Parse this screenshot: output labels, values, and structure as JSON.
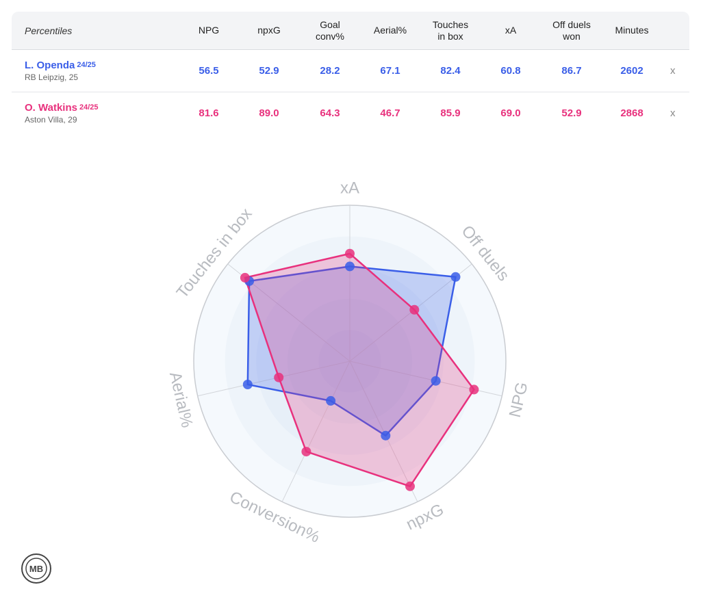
{
  "table": {
    "title": "Percentiles",
    "columns": [
      {
        "key": "npg",
        "label": "NPG"
      },
      {
        "key": "npxg",
        "label": "npxG"
      },
      {
        "key": "conv",
        "label": "Goal\nconv%"
      },
      {
        "key": "aerial",
        "label": "Aerial%"
      },
      {
        "key": "touches",
        "label": "Touches\nin box"
      },
      {
        "key": "xa",
        "label": "xA"
      },
      {
        "key": "offduels",
        "label": "Off duels\nwon"
      },
      {
        "key": "minutes",
        "label": "Minutes"
      }
    ],
    "remove_label": "x",
    "players": [
      {
        "name": "L. Openda",
        "season": "24/25",
        "club": "RB Leipzig, 25",
        "color": "#3a5ee8",
        "values": [
          "56.5",
          "52.9",
          "28.2",
          "67.1",
          "82.4",
          "60.8",
          "86.7",
          "2602"
        ]
      },
      {
        "name": "O. Watkins",
        "season": "24/25",
        "club": "Aston Villa, 29",
        "color": "#e8317d",
        "values": [
          "81.6",
          "89.0",
          "64.3",
          "46.7",
          "85.9",
          "69.0",
          "52.9",
          "2868"
        ]
      }
    ]
  },
  "chart_data": {
    "type": "radar",
    "range": [
      0,
      100
    ],
    "axes": [
      "xA",
      "Off duels",
      "NPG",
      "npxG",
      "Conversion%",
      "Aerial%",
      "Touches in box"
    ],
    "series": [
      {
        "name": "L. Openda",
        "color": "#3a5ee8",
        "values": [
          60.8,
          86.7,
          56.5,
          52.9,
          28.2,
          67.1,
          82.4
        ]
      },
      {
        "name": "O. Watkins",
        "color": "#e8317d",
        "values": [
          69.0,
          52.9,
          81.6,
          89.0,
          64.3,
          46.7,
          85.9
        ]
      }
    ],
    "rings": 5
  },
  "logo": {
    "text": "MB",
    "icon": "mb-badge-icon"
  }
}
